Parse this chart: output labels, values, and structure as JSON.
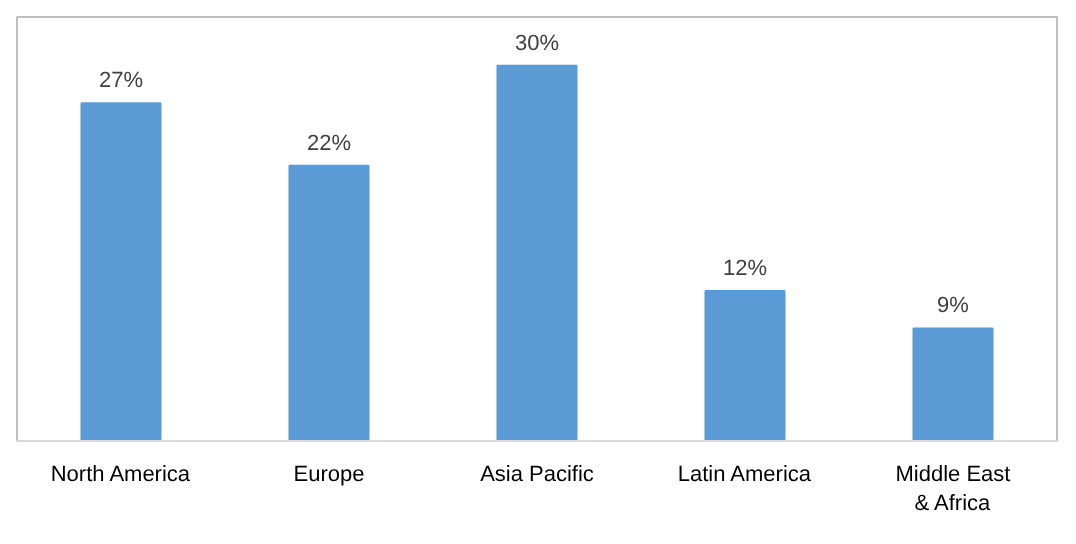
{
  "chart_data": {
    "type": "bar",
    "categories": [
      "North America",
      "Europe",
      "Asia Pacific",
      "Latin America",
      "Middle East & Africa"
    ],
    "values": [
      27,
      22,
      30,
      12,
      9
    ],
    "value_labels": [
      "27%",
      "22%",
      "30%",
      "12%",
      "9%"
    ],
    "color": "#5b9bd5",
    "grid": false
  }
}
